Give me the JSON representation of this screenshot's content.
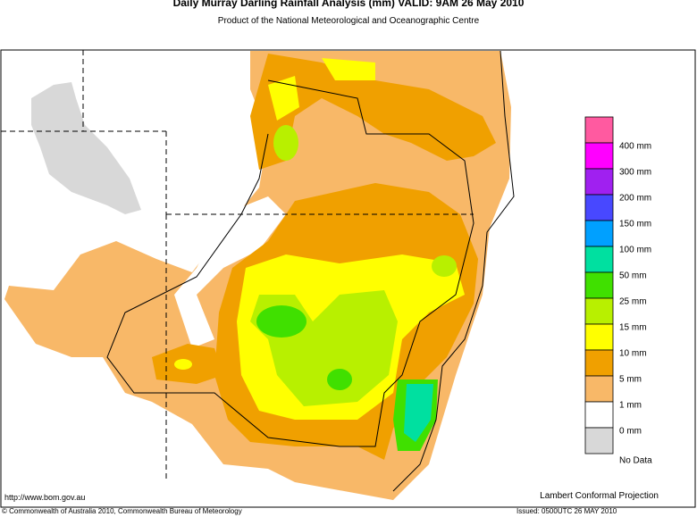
{
  "header": {
    "title": "Daily Murray Darling Rainfall Analysis (mm)  VALID: 9AM 26 May 2010",
    "subtitle": "Product of the National Meteorological and Oceanographic Centre"
  },
  "legend": {
    "items": [
      {
        "color": "#ff5aa0"
      },
      {
        "label": "400 mm",
        "color": "#ff00ff"
      },
      {
        "label": "300 mm",
        "color": "#a020f0"
      },
      {
        "label": "200 mm",
        "color": "#4848ff"
      },
      {
        "label": "150 mm",
        "color": "#00a0ff"
      },
      {
        "label": "100 mm",
        "color": "#00e0a0"
      },
      {
        "label": "50 mm",
        "color": "#40e000"
      },
      {
        "label": "25 mm",
        "color": "#b8f000"
      },
      {
        "label": "15 mm",
        "color": "#ffff00"
      },
      {
        "label": "10 mm",
        "color": "#f0a000"
      },
      {
        "label": "5 mm",
        "color": "#f8b868"
      },
      {
        "label": "1 mm",
        "color": "#ffffff"
      },
      {
        "label": "0 mm",
        "color": "#d8d8d8"
      }
    ],
    "no_data_label": "No Data"
  },
  "footer": {
    "url": "http://www.bom.gov.au",
    "projection": "Lambert Conformal Projection",
    "copyright": "© Commonwealth of Australia 2010, Commonwealth Bureau of Meteorology",
    "issued": "Issued: 0500UTC 26 MAY 2010"
  }
}
